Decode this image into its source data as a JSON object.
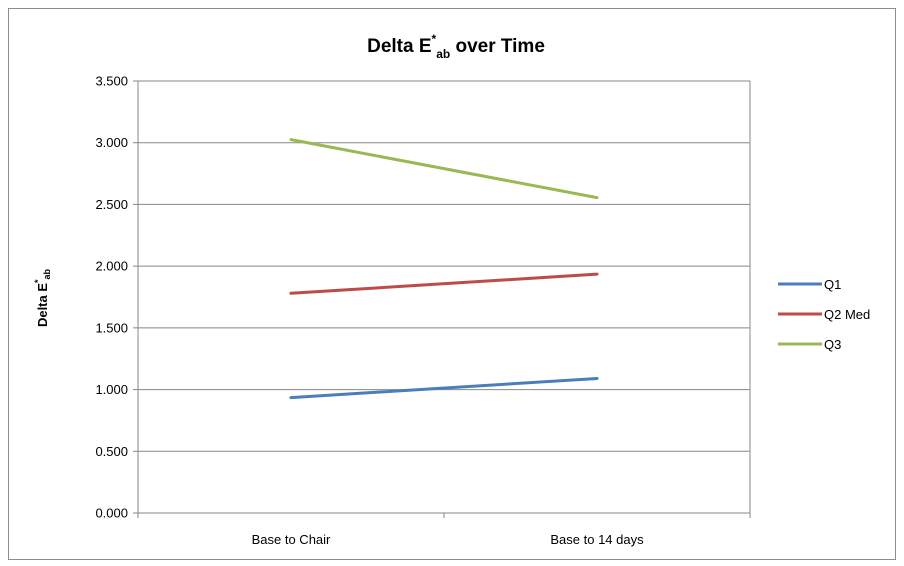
{
  "chart_data": {
    "type": "line",
    "title": {
      "main": "Delta E",
      "sup": "*",
      "sub": "ab",
      "rest": " over Time"
    },
    "ylabel": {
      "main": "Delta E",
      "sup": "*",
      "sub": "ab"
    },
    "xlabel": "",
    "categories": [
      "Base to Chair",
      "Base to 14 days"
    ],
    "ylim": [
      0,
      3.5
    ],
    "yticks": [
      "0.000",
      "0.500",
      "1.000",
      "1.500",
      "2.000",
      "2.500",
      "3.000",
      "3.500"
    ],
    "ytick_values": [
      0,
      0.5,
      1.0,
      1.5,
      2.0,
      2.5,
      3.0,
      3.5
    ],
    "grid": true,
    "legend_position": "right",
    "series": [
      {
        "name": "Q1",
        "values": [
          0.935,
          1.09
        ],
        "color": "#4a7ebb"
      },
      {
        "name": "Q2 Med",
        "values": [
          1.78,
          1.935
        ],
        "color": "#be4b48"
      },
      {
        "name": "Q3",
        "values": [
          3.025,
          2.555
        ],
        "color": "#98b954"
      }
    ]
  }
}
